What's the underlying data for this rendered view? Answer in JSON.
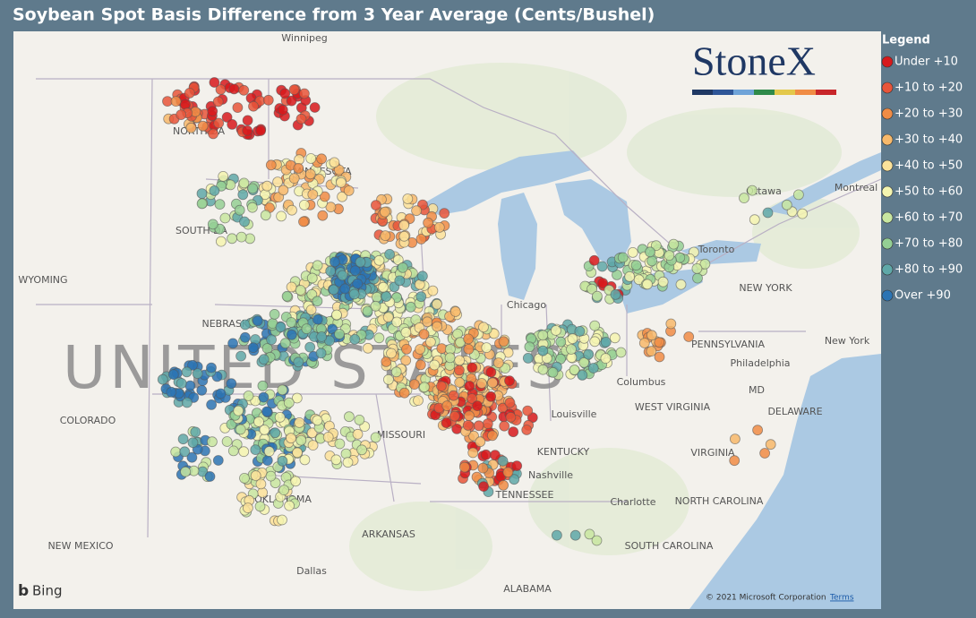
{
  "title": "Soybean Spot Basis Difference from 3 Year Average (Cents/Bushel)",
  "legend": {
    "title": "Legend",
    "items": [
      {
        "label": "Under +10",
        "color": "#d7191c"
      },
      {
        "label": "+10 to +20",
        "color": "#e8553a"
      },
      {
        "label": "+20 to +30",
        "color": "#f08c45"
      },
      {
        "label": "+30 to +40",
        "color": "#f7b96b"
      },
      {
        "label": "+40 to +50",
        "color": "#fbe29a"
      },
      {
        "label": "+50 to +60",
        "color": "#f4f5b0"
      },
      {
        "label": "+60 to +70",
        "color": "#c8e6a0"
      },
      {
        "label": "+70 to +80",
        "color": "#94cf94"
      },
      {
        "label": "+80 to +90",
        "color": "#5fa8a8"
      },
      {
        "label": "Over +90",
        "color": "#2b74b4"
      }
    ]
  },
  "logo": "StoneX",
  "map": {
    "country_label": "UNITED STATES",
    "labels": [
      "Winnipeg",
      "NORTH DA",
      "MINNESOTA",
      "SOUTH DA",
      "WYOMING",
      "NEBRASKA",
      "COLORADO",
      "MISSOURI",
      "OKLAHOMA",
      "NEW MEXICO",
      "ARKANSAS",
      "Dallas",
      "ALABAMA",
      "TENNESSEE",
      "Nashville",
      "KENTUCKY",
      "Louisville",
      "Chicago",
      "Columbus",
      "WEST VIRGINIA",
      "VIRGINIA",
      "NORTH CAROLINA",
      "SOUTH CAROLINA",
      "Charlotte",
      "PENNSYLVANIA",
      "Philadelphia",
      "New York",
      "NEW YORK",
      "Toronto",
      "Ottawa",
      "Montreal",
      "DELAWARE",
      "MD"
    ],
    "attribution": "Bing",
    "copyright": "© 2021 Microsoft Corporation",
    "terms": "Terms"
  }
}
